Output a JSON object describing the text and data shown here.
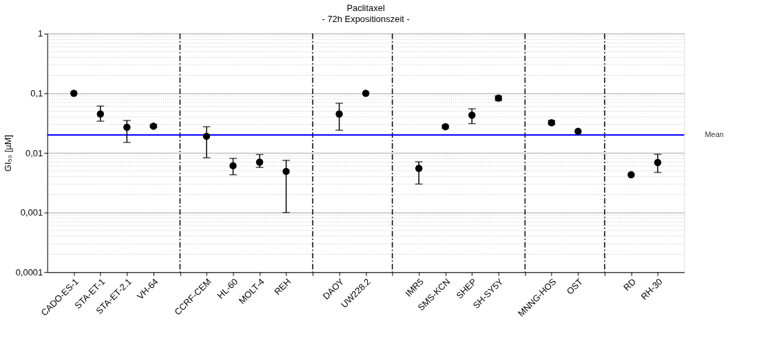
{
  "chart_data": {
    "type": "scatter",
    "title": "Paclitaxel",
    "subtitle": "- 72h Expositionszeit -",
    "ylabel": "GI₅₀ [µM]",
    "categories": [
      "CADO-ES-1",
      "STA-ET-1",
      "STA-ET-2.1",
      "VH-64",
      null,
      "CCRF-CEM",
      "HL-60",
      "MOLT-4",
      "REH",
      null,
      "DAOY",
      "UW228.2",
      null,
      "IMR5",
      "SMS-KCN",
      "SHEP",
      "SH-SY5Y",
      null,
      "MNNG-HOS",
      "OST",
      null,
      "RD",
      "RH-30"
    ],
    "values": [
      0.1,
      0.045,
      0.027,
      0.028,
      null,
      0.019,
      0.0061,
      0.007,
      0.0049,
      null,
      0.045,
      0.1,
      null,
      0.0055,
      0.0275,
      0.043,
      0.083,
      null,
      0.032,
      0.023,
      null,
      0.0043,
      0.0069
    ],
    "errors": [
      null,
      [
        0.034,
        0.061
      ],
      [
        0.015,
        0.035
      ],
      [
        0.027,
        0.03
      ],
      null,
      [
        0.0083,
        0.0275
      ],
      [
        0.0043,
        0.0081
      ],
      [
        0.0057,
        0.0094
      ],
      [
        0.001,
        0.0075
      ],
      null,
      [
        0.024,
        0.068
      ],
      null,
      null,
      [
        0.003,
        0.0071
      ],
      [
        0.026,
        0.029
      ],
      [
        0.031,
        0.055
      ],
      [
        0.075,
        0.09
      ],
      null,
      [
        0.03,
        0.035
      ],
      null,
      null,
      null,
      [
        0.0047,
        0.0095
      ]
    ],
    "color": "#000000",
    "marker": "circle",
    "log": true,
    "grid": "y",
    "ylim": [
      0.0001,
      1
    ],
    "yticks": [
      {
        "value": 0.0001,
        "label": "0,0001"
      },
      {
        "value": 0.001,
        "label": "0,001"
      },
      {
        "value": 0.01,
        "label": "0,01"
      },
      {
        "value": 0.1,
        "label": "0,1"
      },
      1
    ],
    "ref_lines": [
      {
        "axis": "y",
        "value": 0.02,
        "label": "Mean",
        "color": "#0000ff"
      }
    ]
  }
}
